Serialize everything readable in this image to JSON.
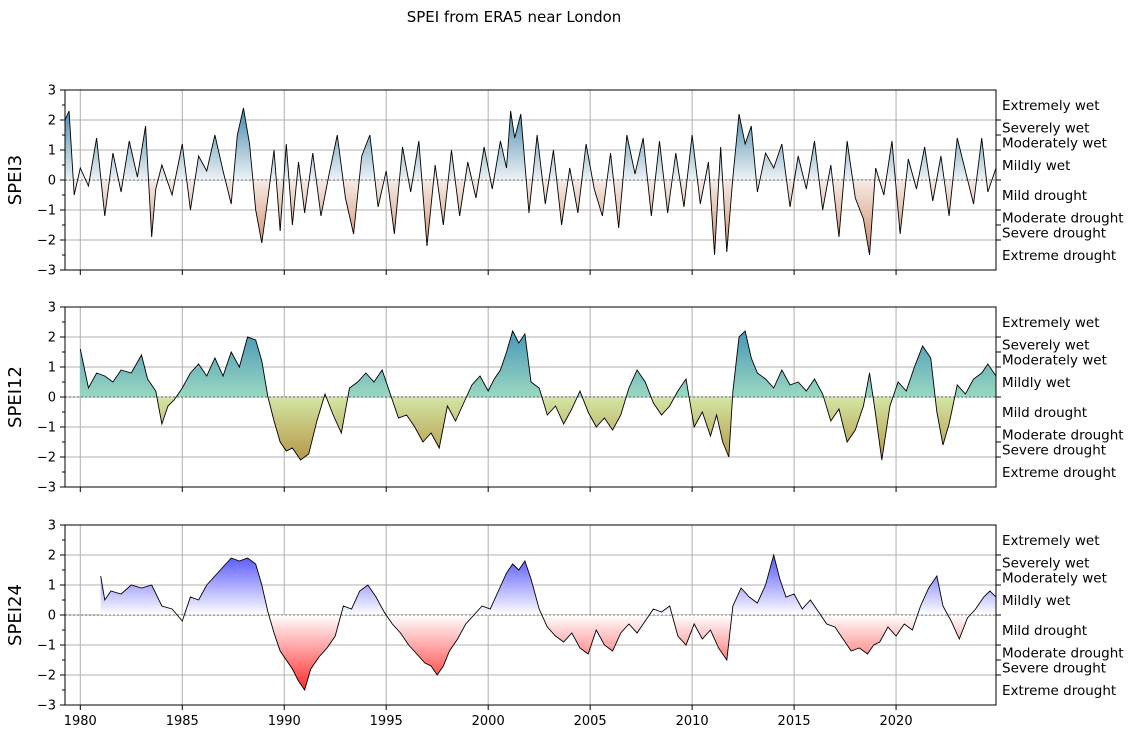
{
  "figure": {
    "title": "SPEI from ERA5 near London"
  },
  "category_labels": [
    "Extremely wet",
    "Severely wet",
    "Moderately wet",
    "Mildly wet",
    "Mild drought",
    "Moderate drought",
    "Severe drought",
    "Extreme drought"
  ],
  "category_bounds": [
    2.0,
    1.5,
    1.0,
    0.0,
    -1.0,
    -1.5,
    -2.0
  ],
  "chart_data": [
    {
      "type": "area",
      "name": "spei3",
      "ylabel": "SPEI3",
      "ylim": [
        -3,
        3
      ],
      "xlim": [
        1979.25,
        2024.9
      ],
      "yticks": [
        -3,
        -2,
        -1,
        0,
        1,
        2,
        3
      ],
      "xticks": [
        1980,
        1985,
        1990,
        1995,
        2000,
        2005,
        2010,
        2015,
        2020
      ],
      "grid": true,
      "colormap": {
        "wet_top": "#1d6f9e",
        "wet_bottom": "#eef2f4",
        "dry_top": "#f6ece6",
        "dry_bottom": "#c8704a"
      },
      "x": [
        1979.25,
        1979.45,
        1979.7,
        1980.0,
        1980.4,
        1980.8,
        1981.2,
        1981.6,
        1982.0,
        1982.4,
        1982.8,
        1983.2,
        1983.5,
        1983.7,
        1984.0,
        1984.5,
        1985.0,
        1985.4,
        1985.8,
        1986.2,
        1986.6,
        1987.0,
        1987.4,
        1987.7,
        1988.0,
        1988.3,
        1988.6,
        1988.9,
        1989.2,
        1989.5,
        1989.8,
        1990.1,
        1990.4,
        1990.7,
        1991.0,
        1991.4,
        1991.8,
        1992.2,
        1992.6,
        1993.0,
        1993.4,
        1993.8,
        1994.2,
        1994.6,
        1995.0,
        1995.4,
        1995.8,
        1996.2,
        1996.6,
        1997.0,
        1997.4,
        1997.8,
        1998.2,
        1998.6,
        1999.0,
        1999.4,
        1999.8,
        2000.2,
        2000.6,
        2000.9,
        2001.1,
        2001.3,
        2001.6,
        2002.0,
        2002.4,
        2002.8,
        2003.2,
        2003.6,
        2004.0,
        2004.4,
        2004.8,
        2005.2,
        2005.6,
        2006.0,
        2006.4,
        2006.8,
        2007.2,
        2007.6,
        2008.0,
        2008.4,
        2008.8,
        2009.2,
        2009.6,
        2010.0,
        2010.4,
        2010.8,
        2011.1,
        2011.4,
        2011.7,
        2012.0,
        2012.3,
        2012.6,
        2012.9,
        2013.2,
        2013.6,
        2014.0,
        2014.4,
        2014.8,
        2015.2,
        2015.6,
        2016.0,
        2016.4,
        2016.8,
        2017.2,
        2017.6,
        2018.0,
        2018.4,
        2018.7,
        2019.0,
        2019.4,
        2019.8,
        2020.2,
        2020.6,
        2021.0,
        2021.4,
        2021.8,
        2022.2,
        2022.6,
        2023.0,
        2023.4,
        2023.8,
        2024.2,
        2024.5,
        2024.9
      ],
      "values": [
        2.0,
        2.3,
        -0.5,
        0.4,
        -0.2,
        1.4,
        -1.2,
        0.9,
        -0.4,
        1.3,
        0.1,
        1.8,
        -1.9,
        -0.3,
        0.5,
        -0.5,
        1.2,
        -1.0,
        0.8,
        0.3,
        1.5,
        0.3,
        -0.8,
        1.5,
        2.4,
        1.2,
        -1.0,
        -2.1,
        -0.6,
        1.0,
        -1.7,
        1.2,
        -1.5,
        0.6,
        -1.1,
        0.9,
        -1.2,
        0.2,
        1.5,
        -0.6,
        -1.8,
        0.8,
        1.5,
        -0.9,
        0.3,
        -1.8,
        1.1,
        -0.4,
        1.3,
        -2.2,
        0.5,
        -1.5,
        1.0,
        -1.2,
        0.6,
        -0.6,
        1.1,
        -0.3,
        1.3,
        0.4,
        2.3,
        1.4,
        2.2,
        -1.1,
        1.5,
        -0.8,
        1.0,
        -1.5,
        0.4,
        -1.1,
        1.2,
        -0.3,
        -1.2,
        0.9,
        -1.6,
        1.5,
        0.2,
        1.4,
        -1.2,
        1.3,
        -1.1,
        0.9,
        -0.9,
        1.5,
        -0.8,
        0.6,
        -2.5,
        1.1,
        -2.4,
        0.1,
        2.2,
        1.2,
        1.8,
        -0.4,
        0.9,
        0.4,
        1.2,
        -0.9,
        0.8,
        -0.3,
        1.3,
        -1.0,
        0.5,
        -1.9,
        1.3,
        -0.6,
        -1.3,
        -2.5,
        0.4,
        -0.5,
        1.3,
        -1.8,
        0.7,
        -0.3,
        1.1,
        -0.7,
        0.8,
        -1.2,
        1.4,
        0.3,
        -0.8,
        1.4,
        -0.4,
        0.4
      ]
    },
    {
      "type": "area",
      "name": "spei12",
      "ylabel": "SPEI12",
      "ylim": [
        -3,
        3
      ],
      "xlim": [
        1979.25,
        2024.9
      ],
      "yticks": [
        -3,
        -2,
        -1,
        0,
        1,
        2,
        3
      ],
      "xticks": [
        1980,
        1985,
        1990,
        1995,
        2000,
        2005,
        2010,
        2015,
        2020
      ],
      "grid": true,
      "colormap": {
        "wet_top": "#2b7fb8",
        "wet_bottom": "#9ad8c0",
        "dry_top": "#d4e6a4",
        "dry_bottom": "#a8761e"
      },
      "x": [
        1980.0,
        1980.4,
        1980.8,
        1981.2,
        1981.6,
        1982.0,
        1982.5,
        1983.0,
        1983.3,
        1983.7,
        1984.0,
        1984.3,
        1984.6,
        1985.0,
        1985.4,
        1985.8,
        1986.2,
        1986.6,
        1987.0,
        1987.4,
        1987.8,
        1988.2,
        1988.6,
        1988.9,
        1989.2,
        1989.5,
        1989.8,
        1990.1,
        1990.4,
        1990.8,
        1991.2,
        1991.6,
        1992.0,
        1992.4,
        1992.8,
        1993.2,
        1993.6,
        1994.0,
        1994.4,
        1994.8,
        1995.2,
        1995.6,
        1996.0,
        1996.4,
        1996.8,
        1997.2,
        1997.6,
        1998.0,
        1998.4,
        1998.8,
        1999.2,
        1999.6,
        2000.0,
        2000.3,
        2000.6,
        2000.9,
        2001.2,
        2001.5,
        2001.8,
        2002.1,
        2002.5,
        2002.9,
        2003.3,
        2003.7,
        2004.1,
        2004.5,
        2004.9,
        2005.3,
        2005.7,
        2006.1,
        2006.5,
        2006.9,
        2007.3,
        2007.7,
        2008.1,
        2008.5,
        2008.9,
        2009.3,
        2009.7,
        2010.1,
        2010.5,
        2010.9,
        2011.2,
        2011.5,
        2011.8,
        2012.0,
        2012.3,
        2012.6,
        2012.9,
        2013.2,
        2013.6,
        2014.0,
        2014.4,
        2014.8,
        2015.2,
        2015.6,
        2016.0,
        2016.4,
        2016.8,
        2017.2,
        2017.6,
        2018.0,
        2018.4,
        2018.7,
        2019.0,
        2019.3,
        2019.7,
        2020.1,
        2020.5,
        2020.9,
        2021.3,
        2021.7,
        2022.0,
        2022.3,
        2022.6,
        2023.0,
        2023.4,
        2023.8,
        2024.2,
        2024.5,
        2024.9
      ],
      "values": [
        1.6,
        0.3,
        0.8,
        0.7,
        0.5,
        0.9,
        0.8,
        1.4,
        0.6,
        0.2,
        -0.9,
        -0.3,
        -0.1,
        0.3,
        0.8,
        1.1,
        0.7,
        1.3,
        0.7,
        1.5,
        1.0,
        2.0,
        1.9,
        1.2,
        0.0,
        -0.8,
        -1.5,
        -1.8,
        -1.7,
        -2.1,
        -1.9,
        -0.8,
        0.1,
        -0.6,
        -1.2,
        0.3,
        0.5,
        0.8,
        0.5,
        0.9,
        0.1,
        -0.7,
        -0.6,
        -1.0,
        -1.5,
        -1.2,
        -1.7,
        -0.3,
        -0.8,
        -0.2,
        0.4,
        0.7,
        0.2,
        0.6,
        0.9,
        1.5,
        2.2,
        1.8,
        2.1,
        0.5,
        0.3,
        -0.6,
        -0.3,
        -0.9,
        -0.4,
        0.2,
        -0.5,
        -1.0,
        -0.7,
        -1.1,
        -0.6,
        0.3,
        0.9,
        0.5,
        -0.2,
        -0.6,
        -0.3,
        0.2,
        0.6,
        -1.0,
        -0.5,
        -1.3,
        -0.6,
        -1.5,
        -2.0,
        0.2,
        2.0,
        2.2,
        1.3,
        0.8,
        0.6,
        0.3,
        0.9,
        0.4,
        0.5,
        0.2,
        0.6,
        0.1,
        -0.8,
        -0.4,
        -1.5,
        -1.1,
        -0.3,
        0.8,
        -0.6,
        -2.1,
        -0.3,
        0.5,
        0.2,
        1.0,
        1.7,
        1.3,
        -0.5,
        -1.6,
        -0.9,
        0.4,
        0.1,
        0.6,
        0.8,
        1.1,
        0.7
      ]
    },
    {
      "type": "area",
      "name": "spei24",
      "ylabel": "SPEI24",
      "ylim": [
        -3,
        3
      ],
      "xlim": [
        1979.25,
        2024.9
      ],
      "yticks": [
        -3,
        -2,
        -1,
        0,
        1,
        2,
        3
      ],
      "xticks": [
        1980,
        1985,
        1990,
        1995,
        2000,
        2005,
        2010,
        2015,
        2020
      ],
      "xticklabels": [
        "1980",
        "1985",
        "1990",
        "1995",
        "2000",
        "2005",
        "2010",
        "2015",
        "2020"
      ],
      "grid": true,
      "colormap": {
        "wet_top": "#0000ff",
        "wet_bottom": "#ffffff",
        "dry_top": "#ffffff",
        "dry_bottom": "#ff0000"
      },
      "x": [
        1981.0,
        1981.2,
        1981.5,
        1982.0,
        1982.5,
        1983.0,
        1983.5,
        1984.0,
        1984.5,
        1985.0,
        1985.4,
        1985.8,
        1986.2,
        1986.6,
        1987.0,
        1987.4,
        1987.8,
        1988.2,
        1988.6,
        1988.9,
        1989.2,
        1989.5,
        1989.8,
        1990.1,
        1990.4,
        1990.7,
        1991.0,
        1991.3,
        1991.7,
        1992.1,
        1992.5,
        1992.9,
        1993.3,
        1993.7,
        1994.1,
        1994.5,
        1994.9,
        1995.3,
        1995.7,
        1996.1,
        1996.5,
        1996.9,
        1997.2,
        1997.5,
        1997.8,
        1998.1,
        1998.5,
        1998.9,
        1999.3,
        1999.7,
        2000.1,
        2000.5,
        2000.9,
        2001.2,
        2001.5,
        2001.8,
        2002.1,
        2002.5,
        2002.9,
        2003.3,
        2003.7,
        2004.1,
        2004.5,
        2004.9,
        2005.3,
        2005.7,
        2006.1,
        2006.5,
        2006.9,
        2007.3,
        2007.7,
        2008.1,
        2008.5,
        2008.9,
        2009.3,
        2009.7,
        2010.1,
        2010.5,
        2010.9,
        2011.3,
        2011.7,
        2012.0,
        2012.4,
        2012.8,
        2013.2,
        2013.6,
        2014.0,
        2014.3,
        2014.6,
        2015.0,
        2015.4,
        2015.8,
        2016.2,
        2016.6,
        2017.0,
        2017.4,
        2017.8,
        2018.2,
        2018.6,
        2018.9,
        2019.2,
        2019.6,
        2020.0,
        2020.4,
        2020.8,
        2021.2,
        2021.6,
        2022.0,
        2022.3,
        2022.7,
        2023.1,
        2023.5,
        2023.9,
        2024.3,
        2024.6,
        2024.9
      ],
      "values": [
        1.3,
        0.5,
        0.8,
        0.7,
        1.0,
        0.9,
        1.0,
        0.3,
        0.2,
        -0.2,
        0.6,
        0.5,
        1.0,
        1.3,
        1.6,
        1.9,
        1.8,
        1.9,
        1.7,
        1.0,
        0.1,
        -0.6,
        -1.2,
        -1.5,
        -1.8,
        -2.2,
        -2.5,
        -1.8,
        -1.4,
        -1.1,
        -0.7,
        0.3,
        0.2,
        0.8,
        1.0,
        0.6,
        0.1,
        -0.3,
        -0.6,
        -1.0,
        -1.3,
        -1.6,
        -1.7,
        -2.0,
        -1.7,
        -1.2,
        -0.8,
        -0.3,
        0.0,
        0.3,
        0.2,
        0.8,
        1.4,
        1.7,
        1.5,
        1.8,
        1.2,
        0.2,
        -0.4,
        -0.7,
        -0.9,
        -0.6,
        -1.1,
        -1.3,
        -0.5,
        -1.0,
        -1.2,
        -0.6,
        -0.3,
        -0.6,
        -0.2,
        0.2,
        0.1,
        0.3,
        -0.7,
        -1.0,
        -0.3,
        -0.8,
        -0.5,
        -1.1,
        -1.5,
        0.3,
        0.9,
        0.6,
        0.4,
        1.0,
        2.0,
        1.2,
        0.6,
        0.7,
        0.2,
        0.5,
        0.1,
        -0.3,
        -0.4,
        -0.8,
        -1.2,
        -1.1,
        -1.3,
        -1.0,
        -0.9,
        -0.4,
        -0.7,
        -0.3,
        -0.5,
        0.3,
        0.9,
        1.3,
        0.3,
        -0.2,
        -0.8,
        -0.1,
        0.2,
        0.6,
        0.8,
        0.6
      ]
    }
  ]
}
